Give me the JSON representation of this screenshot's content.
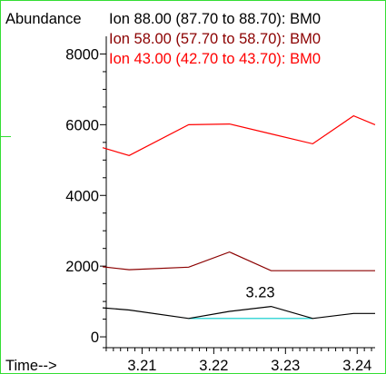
{
  "chart_data": {
    "type": "line",
    "ylabel": "Abundance",
    "xlabel": "Time-->",
    "xlim": [
      3.2045,
      3.2425
    ],
    "ylim": [
      -50,
      8500
    ],
    "y_ticks": [
      0,
      2000,
      4000,
      6000,
      8000
    ],
    "x_ticks": [
      3.21,
      3.22,
      3.23,
      3.24
    ],
    "x_tick_labels": [
      "3.21",
      "3.22",
      "3.23",
      "3.24"
    ],
    "y_tick_labels": [
      "0",
      "2000",
      "4000",
      "6000",
      "8000"
    ],
    "series": [
      {
        "name": "Ion 88.00 (87.70 to 88.70): BM0",
        "color": "#000000",
        "x": [
          3.2045,
          3.2082,
          3.2165,
          3.2222,
          3.228,
          3.2338,
          3.2395,
          3.2425
        ],
        "y": [
          820,
          760,
          520,
          720,
          860,
          520,
          660,
          660
        ]
      },
      {
        "name": "Ion 58.00 (57.70 to 58.70): BM0",
        "color": "#8b0000",
        "x": [
          3.2045,
          3.2082,
          3.2165,
          3.2222,
          3.228,
          3.2338,
          3.2395,
          3.2425
        ],
        "y": [
          1980,
          1900,
          1970,
          2400,
          1870,
          1870,
          1870,
          1870
        ]
      },
      {
        "name": "Ion 43.00 (42.70 to 43.70): BM0",
        "color": "#ff0000",
        "x": [
          3.2045,
          3.2082,
          3.2165,
          3.2222,
          3.228,
          3.2338,
          3.2395,
          3.2425
        ],
        "y": [
          5350,
          5130,
          6000,
          6020,
          5740,
          5460,
          6250,
          6000
        ]
      }
    ],
    "peak_annotation": {
      "label": "3.23",
      "x": 3.228,
      "y": 860,
      "baseline_x": [
        3.2165,
        3.2338
      ],
      "baseline_y": [
        520,
        520
      ],
      "baseline_color": "#00cccc"
    }
  }
}
